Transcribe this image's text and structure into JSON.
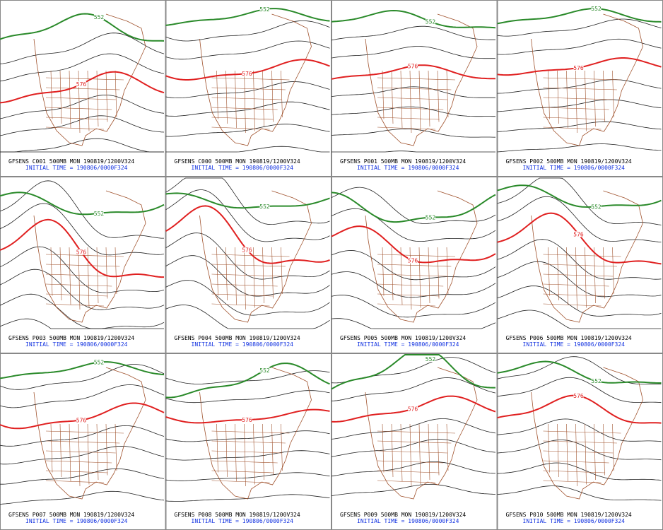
{
  "panels": [
    {
      "title": "GFSENS C001 500MB MON 190819/1200V324",
      "initial": "INITIAL TIME = 190806/0000F324",
      "contour_labels": [
        "552",
        "576"
      ]
    },
    {
      "title": "GFSENS C000 500MB MON 190819/1200V324",
      "initial": "INITIAL TIME = 190806/0000F324",
      "contour_labels": [
        "552",
        "576"
      ]
    },
    {
      "title": "GFSENS P001 500MB MON 190819/1200V324",
      "initial": "INITIAL TIME = 190806/0000F324",
      "contour_labels": [
        "552",
        "576"
      ]
    },
    {
      "title": "GFSENS P002 500MB MON 190819/1200V324",
      "initial": "INITIAL TIME = 190806/0000F324",
      "contour_labels": [
        "552",
        "576"
      ]
    },
    {
      "title": "GFSENS P003 500MB MON 190819/1200V324",
      "initial": "INITIAL TIME = 190806/0000F324",
      "contour_labels": [
        "552",
        "576"
      ]
    },
    {
      "title": "GFSENS P004 500MB MON 190819/1200V324",
      "initial": "INITIAL TIME = 190806/0000F324",
      "contour_labels": [
        "552",
        "576"
      ]
    },
    {
      "title": "GFSENS P005 500MB MON 190819/1200V324",
      "initial": "INITIAL TIME = 190806/0000F324",
      "contour_labels": [
        "552",
        "576"
      ]
    },
    {
      "title": "GFSENS P006 500MB MON 190819/1200V324",
      "initial": "INITIAL TIME = 190806/0000F324",
      "contour_labels": [
        "552",
        "576"
      ]
    },
    {
      "title": "GFSENS P007 500MB MON 190819/1200V324",
      "initial": "INITIAL TIME = 190806/0000F324",
      "contour_labels": [
        "552",
        "576"
      ]
    },
    {
      "title": "GFSENS P008 500MB MON 190819/1200V324",
      "initial": "INITIAL TIME = 190806/0000F324",
      "contour_labels": [
        "552",
        "576"
      ]
    },
    {
      "title": "GFSENS P009 500MB MON 190819/1200V324",
      "initial": "INITIAL TIME = 190806/0000F324",
      "contour_labels": [
        "552",
        "576"
      ]
    },
    {
      "title": "GFSENS P010 500MB MON 190819/1200V324",
      "initial": "INITIAL TIME = 190806/0000F324",
      "contour_labels": [
        "552",
        "576"
      ]
    }
  ]
}
